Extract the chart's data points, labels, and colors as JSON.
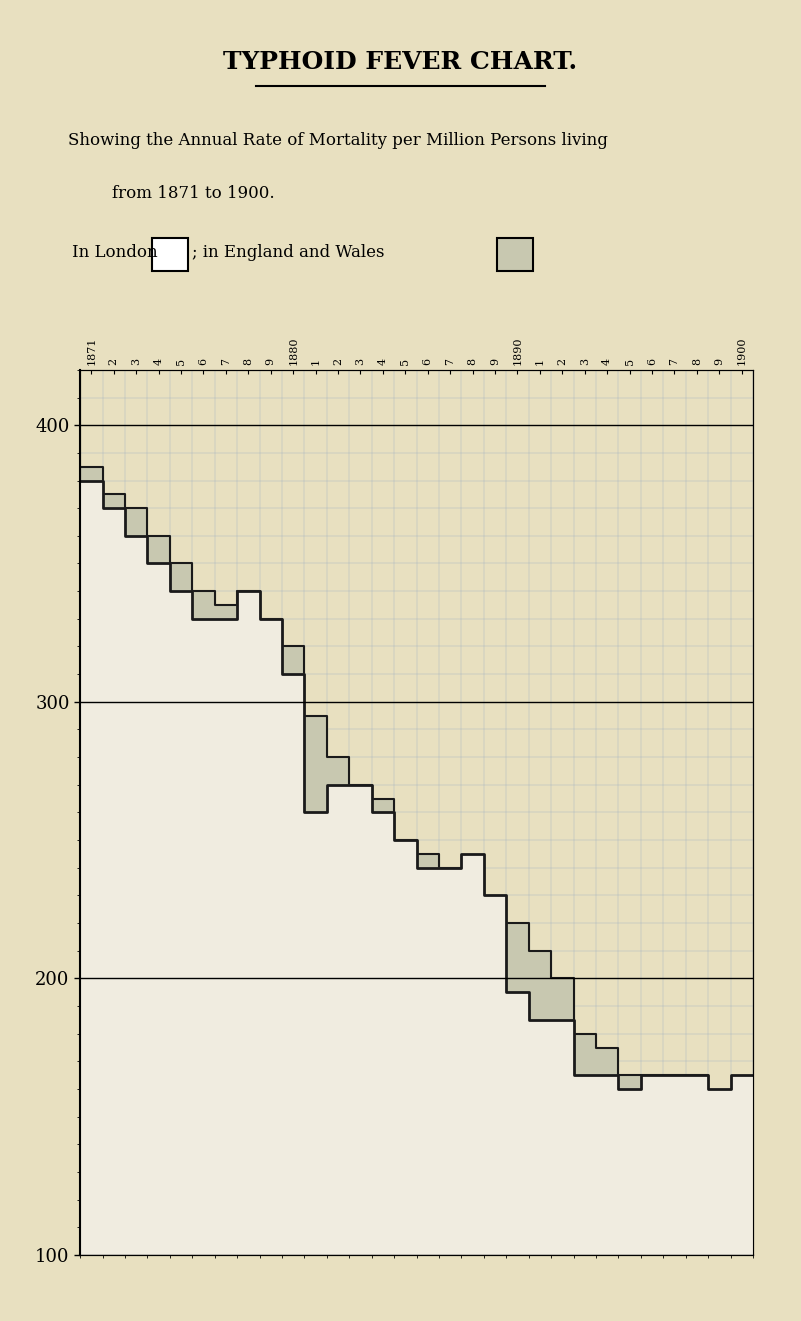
{
  "title": "TYPHOID FEVER CHART.",
  "subtitle_line1": "Showing the Annual Rate of Mortality per Million Persons living",
  "subtitle_line2": "from 1871 to 1900.",
  "legend_london": "In London",
  "legend_ew": "; in England and Wales",
  "bg_color": "#e8e0c0",
  "grid_color": "#a0b0c0",
  "years": [
    1871,
    1872,
    1873,
    1874,
    1875,
    1876,
    1877,
    1878,
    1879,
    1880,
    1881,
    1882,
    1883,
    1884,
    1885,
    1886,
    1887,
    1888,
    1889,
    1890,
    1891,
    1892,
    1893,
    1894,
    1895,
    1896,
    1897,
    1898,
    1899,
    1900
  ],
  "london_values": [
    380,
    370,
    360,
    350,
    340,
    330,
    330,
    340,
    330,
    310,
    260,
    270,
    270,
    260,
    250,
    240,
    240,
    245,
    230,
    195,
    185,
    185,
    165,
    165,
    160,
    165,
    165,
    165,
    160,
    165
  ],
  "ew_values": [
    385,
    375,
    370,
    360,
    350,
    340,
    335,
    340,
    330,
    320,
    295,
    280,
    270,
    265,
    250,
    245,
    240,
    235,
    225,
    220,
    210,
    200,
    180,
    175,
    165,
    165,
    165,
    165,
    155,
    160
  ],
  "ylim_min": 100,
  "ylim_max": 420,
  "yticks": [
    100,
    200,
    300,
    400
  ],
  "london_fill": "#f0ece0",
  "london_line": "#1a1a1a",
  "ew_fill": "#c8c8b0",
  "ew_line": "#1a1a1a"
}
